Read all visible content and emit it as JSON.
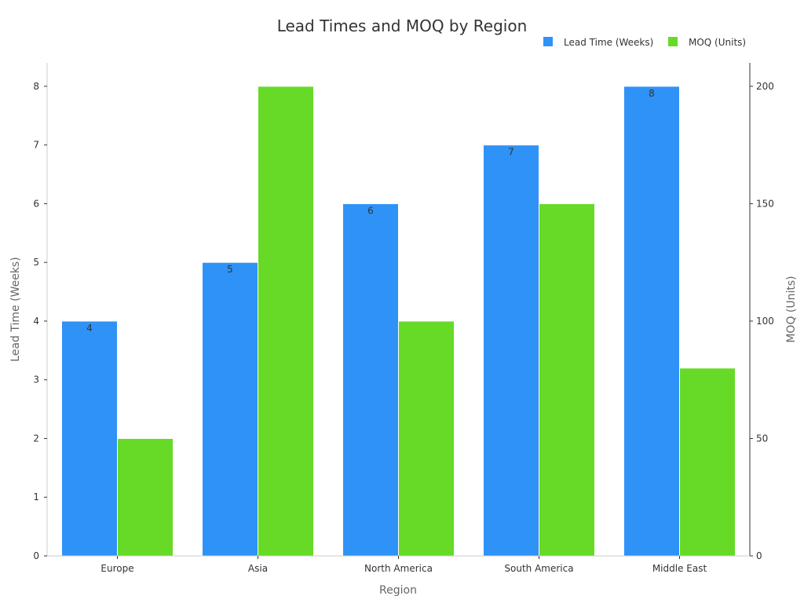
{
  "chart_data": {
    "type": "bar",
    "title": "Lead Times and MOQ by Region",
    "xlabel": "Region",
    "categories": [
      "Europe",
      "Asia",
      "North America",
      "South America",
      "Middle East"
    ],
    "series": [
      {
        "name": "Lead Time (Weeks)",
        "axis": "left",
        "color": "#2F92F7",
        "values": [
          4,
          5,
          6,
          7,
          8
        ],
        "data_labels": [
          "4",
          "5",
          "6",
          "7",
          "8"
        ]
      },
      {
        "name": "MOQ (Units)",
        "axis": "right",
        "color": "#66DA26",
        "values": [
          50,
          200,
          100,
          150,
          80
        ]
      }
    ],
    "y_left": {
      "label": "Lead Time (Weeks)",
      "ylim": [
        0,
        8.4
      ],
      "ticks": [
        0,
        1,
        2,
        3,
        4,
        5,
        6,
        7,
        8
      ]
    },
    "y_right": {
      "label": "MOQ (Units)",
      "ylim": [
        0,
        210
      ],
      "ticks": [
        0,
        50,
        100,
        150,
        200
      ]
    },
    "legend": {
      "position": "top-right"
    },
    "grid": false
  }
}
